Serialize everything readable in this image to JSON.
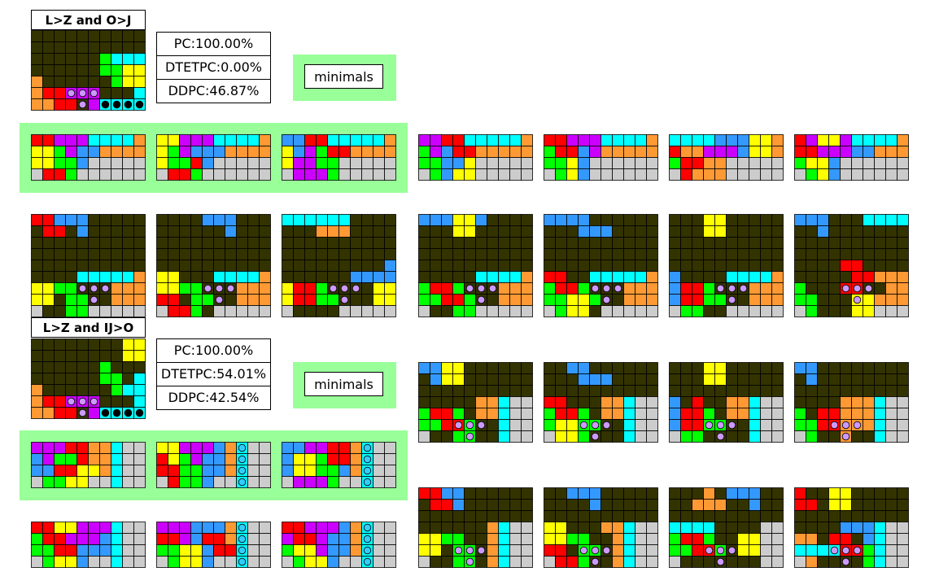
{
  "sections": [
    {
      "title": "L>Z and O>J",
      "stats": {
        "pc": "PC:100.00%",
        "dtetpc": "DTETPC:0.00%",
        "ddpc": "DDPC:46.87%"
      },
      "minimals_label": "minimals"
    },
    {
      "title": "L>Z and IJ>O",
      "stats": {
        "pc": "PC:100.00%",
        "dtetpc": "DTETPC:54.01%",
        "ddpc": "DDPC:42.54%"
      },
      "minimals_label": "minimals"
    }
  ],
  "palette": {
    "Z": "#ff0000",
    "L": "#ff9933",
    "O": "#ffff00",
    "S": "#00ff00",
    "I": "#00ffff",
    "J": "#3399ff",
    "T": "#cc00ff",
    "G": "#cccccc",
    "D": "#333300"
  },
  "main_boards": [
    {
      "rows": [
        "DDDDDDDDDD",
        "DDDDDDDDDD",
        "DDDDDDSIII",
        "DDDDDDSSOO",
        "LDDDDDDSOO",
        "LZZTTTDDDI",
        "LLZZDTIIII"
      ],
      "purple_marks": [
        [
          5,
          3
        ],
        [
          5,
          4
        ],
        [
          5,
          5
        ],
        [
          6,
          4
        ]
      ],
      "black_marks": [
        [
          6,
          6
        ],
        [
          6,
          7
        ],
        [
          6,
          8
        ],
        [
          6,
          9
        ]
      ]
    },
    {
      "rows": [
        "DDDDDDDDOO",
        "DDDDDDDDOO",
        "DDDDDDSDDD",
        "DDDDDDSSDI",
        "LDDDDDDSII",
        "LZZTTTDDDI",
        "LLZZDTIIII"
      ],
      "purple_marks": [
        [
          5,
          3
        ],
        [
          5,
          4
        ],
        [
          5,
          5
        ],
        [
          6,
          4
        ]
      ],
      "black_marks": [
        [
          6,
          6
        ],
        [
          6,
          7
        ],
        [
          6,
          8
        ],
        [
          6,
          9
        ]
      ]
    }
  ],
  "rows_s1_min": [
    [
      "ZZTTTIIIIL",
      "OOSTJJLLLL",
      "OOSSJGGGGG",
      "GZZSGGGGGG"
    ],
    [
      "OOTTTIIIIL",
      "OSTJJJLLLL",
      "OSSZJGGGGG",
      "GZZSGGGGGG"
    ],
    [
      "JJZZIIIIIL",
      "OJTSZZLLLL",
      "OTTSSGGGGG",
      "GTTTSGGGGG"
    ]
  ],
  "rows_s1_top": [
    [
      "TTZZIIIIIL",
      "STJZZLLLLL",
      "SSJJOGGGGG",
      "GSJOOGGGGG"
    ],
    [
      "ZZTTTIIIIL",
      "SZZJTLLLLL",
      "SSOJGGGGGG",
      "GSOJGGGGGG"
    ],
    [
      "IIIIJJJOOL",
      "ZLLTTTJOOL",
      "SZZLLGGGGG",
      "GZLLLGGGGG"
    ],
    [
      "ZTOOTIIIIL",
      "ZZTTTJJLLL",
      "SOOJGGGGGG",
      "GSOJGGGGGG"
    ]
  ],
  "rows_s1_bot": [
    [
      "ZZJJJDDDDD",
      "DZZDJDDDDD",
      "DDDDDDDDDD",
      "DDDDDDDDDD",
      "DDDDDDDDDD",
      "DDDDIIIIIL",
      "OOSSDDDLLL",
      "OODSSDDLLL",
      "GDDSSGGGGG"
    ],
    [
      "DDDDJJJDDD",
      "DDDDDDJDDD",
      "DDDDDDDDDD",
      "DDDDDDDDDD",
      "DDDDDDDDDD",
      "OODDDIIIIL",
      "OOSSDDDLLL",
      "ZZDSSDDLLL",
      "GZZSDGGGGG"
    ],
    [
      "IIIIIIDDDD",
      "DDDLLLDDDD",
      "DDDDDDDDDD",
      "DDDDDDDDDD",
      "DDDDDDDDDJ",
      "DDDDDDJJJJ",
      "OZZSDDDDOO",
      "OZZSSDDDOO",
      "GDDDDGGGGG"
    ],
    [
      "JJJOOJDDDD",
      "DDDOODDDDD",
      "DDDDDDDDDD",
      "DDDDDDDDDD",
      "DDDDDDDDDD",
      "DDDDDIIIIL",
      "SZZSDDDLLL",
      "SSZZSDDLLL",
      "GDDSSGGGGG"
    ],
    [
      "JJJJDDDDDD",
      "DDDJJJDDDD",
      "DDDDDDDDDD",
      "DDDDDDDDDD",
      "DDDDDDDDDD",
      "ZZDDIIIIIL",
      "SZZSDDDLLL",
      "SSOOSDDLLL",
      "GSOODGGGGG"
    ],
    [
      "DDDOODDDDD",
      "DDDOODDDDD",
      "DDDDDDDDDD",
      "DDDDDDDDDD",
      "DDDDDDDDDD",
      "JDDDDIIIIL",
      "JZZSDDDLLL",
      "JZZSSDDLLL",
      "GSSDDGGGGG"
    ],
    [
      "JJJDDDIIII",
      "DDJDDDDDDD",
      "DDDDDDDDDD",
      "DDDDDDDDDD",
      "DDDDZZDDDD",
      "DDDDDZZLLL",
      "SDDDZZDDLL",
      "SSDDDOOLLL",
      "GSDDDOOGGG"
    ]
  ],
  "rows_s2_min": [
    [
      "TTTZZLLIGG",
      "JTSSZLLIGG",
      "JJZZOOLIGG",
      "GSSOOGGIGG"
    ],
    [
      "OOTTTJLIGG",
      "ZOSTJJLIGG",
      "ZZSSJJLIGG",
      "GZSSJGGIGG"
    ],
    [
      "JJTTZZLIGG",
      "JOOSZZLIGG",
      "JOOSSJLIGG",
      "GTTTSGGIGG"
    ]
  ],
  "rows_s2_bot_left": [
    [
      "ZZOOTTTIGG",
      "SZZTTTJIGG",
      "SSZZJJJIGG",
      "GSOOJGGIGG"
    ],
    [
      "TTTJJJLIGG",
      "ZZTJZZLIGG",
      "SSOOJZZIGG",
      "GSOOJGGIGG"
    ],
    [
      "ZZTTTJLIGG",
      "TZZTJJLIGG",
      "SOOTJJLIGG",
      "GSOOJGGIGG"
    ]
  ],
  "rows_s2_right_top": [
    [
      "JJOODDDDDD",
      "DJOODDDDDD",
      "DDDDDDDDDD",
      "DDDDDLLIGG",
      "SZZSDLLIGG",
      "SSZZSDDIGG",
      "GDDSSDDIGG"
    ],
    [
      "DDJJDDDDDD",
      "DDDJJJDDDD",
      "DDDDDDDDDD",
      "ZZDDDLLIGG",
      "SZZSDLLIGG",
      "SOOSSDDIGG",
      "GOOSDDDIGG"
    ],
    [
      "DDDOODDDDD",
      "DDDOODDDDD",
      "DDDDDDDDDD",
      "JDZDDLLIGG",
      "JZZSDLLIGG",
      "JZZSSDDIGG",
      "GSSDDDDIGG"
    ],
    [
      "JJDDDDDDDD",
      "DJDDDDDDDD",
      "DDDDDDDDDD",
      "DDDDLLLIGG",
      "SDZZLLLIGG",
      "SSZZLLLIGG",
      "GSDDLDDIGG"
    ]
  ],
  "rows_s2_right_bot": [
    [
      "ZZJJDDDDDD",
      "DZZJDDDDDD",
      "DDDDDDDDDD",
      "DDDDDDLIGG",
      "OOSSDDLIGG",
      "OODSSDLIGG",
      "GDDSSDLIGG"
    ],
    [
      "DDJJJDDDDD",
      "DDDDJDDDDD",
      "DDDDDDDDDD",
      "OODDDLLIGG",
      "OOSSDDLIGG",
      "ZZDSSDLIGG",
      "GZZSDDLIGG"
    ],
    [
      "DDDLDJJJDD",
      "DDLLLDDJDD",
      "DDDDDDDDDD",
      "IIIIDDDDGG",
      "SZZSDDOOGG",
      "SSZZSDOOGG",
      "GDDDDDDDGG"
    ],
    [
      "ZDDOODDDDD",
      "ZZDOODDDDD",
      "DDDDDDDDDD",
      "DDDDJJJIGG",
      "LLDZZDJIGG",
      "IIIIZZSIGG",
      "GLDDDDSIGG"
    ]
  ],
  "marks_s1_min3": {
    "cyan": [],
    "purple": [],
    "black": []
  },
  "marks_s1_bottom": {
    "purple": [
      [
        6,
        4
      ],
      [
        6,
        5
      ],
      [
        6,
        6
      ],
      [
        7,
        5
      ]
    ]
  },
  "marks_s2_cyan": [
    [
      0,
      7
    ],
    [
      1,
      7
    ],
    [
      2,
      7
    ],
    [
      3,
      7
    ]
  ],
  "marks_s2_right": {
    "purple": [
      [
        5,
        3
      ],
      [
        5,
        4
      ],
      [
        5,
        5
      ],
      [
        6,
        4
      ]
    ]
  }
}
